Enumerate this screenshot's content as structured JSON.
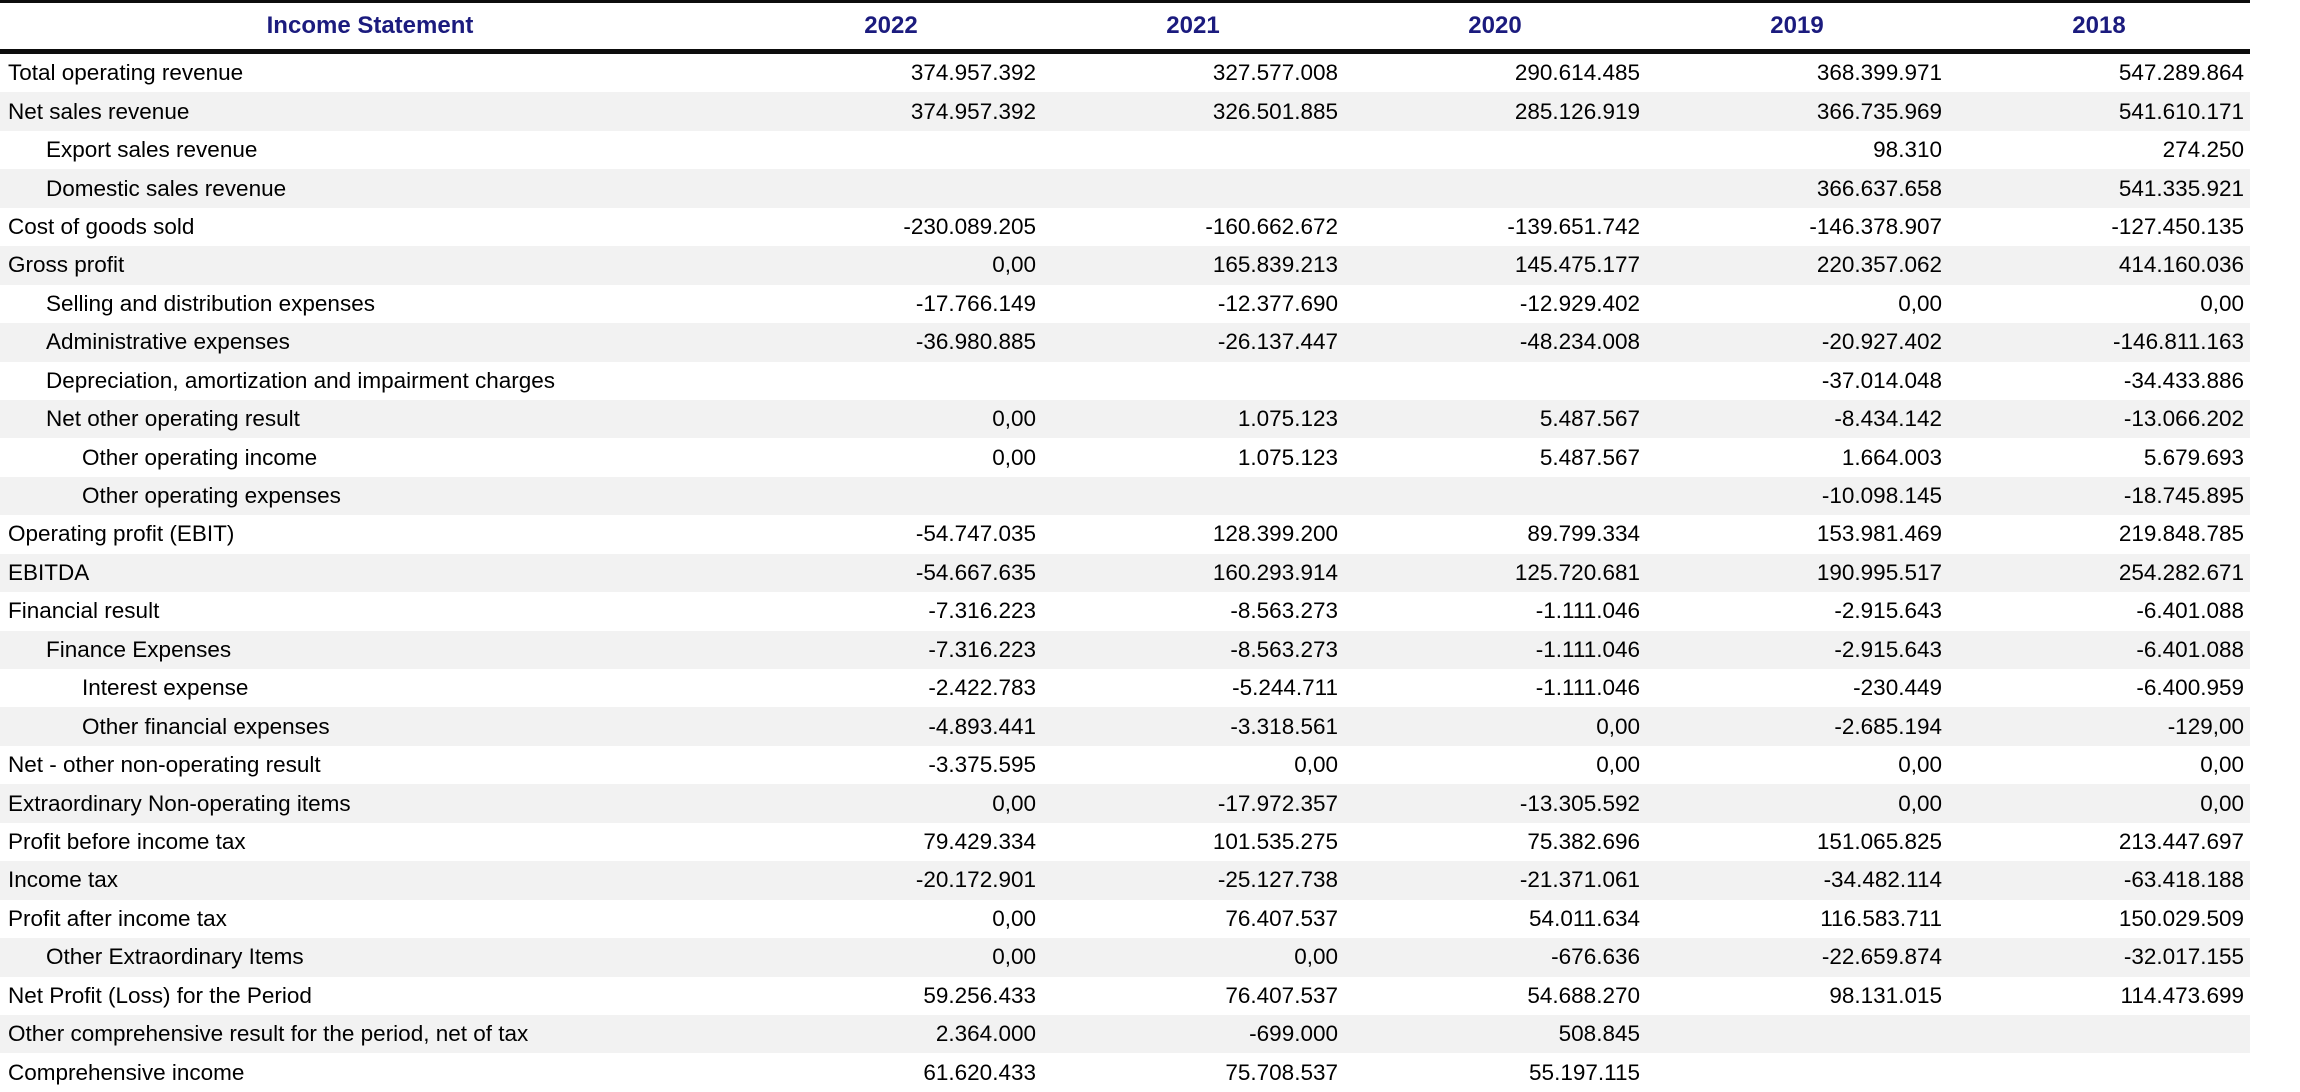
{
  "table": {
    "title": "Income Statement",
    "columns": [
      "2022",
      "2021",
      "2020",
      "2019",
      "2018"
    ],
    "colors": {
      "header_text": "#1b1b7e",
      "stripe": "#f2f2f2",
      "border": "#0d0d0d",
      "body_text": "#000000"
    },
    "rows": [
      {
        "label": "Total operating revenue",
        "indent": 0,
        "values": [
          "374.957.392",
          "327.577.008",
          "290.614.485",
          "368.399.971",
          "547.289.864"
        ]
      },
      {
        "label": "Net sales revenue",
        "indent": 0,
        "values": [
          "374.957.392",
          "326.501.885",
          "285.126.919",
          "366.735.969",
          "541.610.171"
        ]
      },
      {
        "label": "Export sales revenue",
        "indent": 1,
        "values": [
          "",
          "",
          "",
          "98.310",
          "274.250"
        ]
      },
      {
        "label": "Domestic sales revenue",
        "indent": 1,
        "values": [
          "",
          "",
          "",
          "366.637.658",
          "541.335.921"
        ]
      },
      {
        "label": "Cost of goods sold",
        "indent": 0,
        "values": [
          "-230.089.205",
          "-160.662.672",
          "-139.651.742",
          "-146.378.907",
          "-127.450.135"
        ]
      },
      {
        "label": "Gross profit",
        "indent": 0,
        "values": [
          "0,00",
          "165.839.213",
          "145.475.177",
          "220.357.062",
          "414.160.036"
        ]
      },
      {
        "label": "Selling and distribution expenses",
        "indent": 1,
        "values": [
          "-17.766.149",
          "-12.377.690",
          "-12.929.402",
          "0,00",
          "0,00"
        ]
      },
      {
        "label": "Administrative expenses",
        "indent": 1,
        "values": [
          "-36.980.885",
          "-26.137.447",
          "-48.234.008",
          "-20.927.402",
          "-146.811.163"
        ]
      },
      {
        "label": "Depreciation, amortization and impairment charges",
        "indent": 1,
        "values": [
          "",
          "",
          "",
          "-37.014.048",
          "-34.433.886"
        ]
      },
      {
        "label": "Net other operating result",
        "indent": 1,
        "values": [
          "0,00",
          "1.075.123",
          "5.487.567",
          "-8.434.142",
          "-13.066.202"
        ]
      },
      {
        "label": "Other operating income",
        "indent": 2,
        "values": [
          "0,00",
          "1.075.123",
          "5.487.567",
          "1.664.003",
          "5.679.693"
        ]
      },
      {
        "label": "Other operating expenses",
        "indent": 2,
        "values": [
          "",
          "",
          "",
          "-10.098.145",
          "-18.745.895"
        ]
      },
      {
        "label": "Operating profit (EBIT)",
        "indent": 0,
        "values": [
          "-54.747.035",
          "128.399.200",
          "89.799.334",
          "153.981.469",
          "219.848.785"
        ]
      },
      {
        "label": "EBITDA",
        "indent": 0,
        "values": [
          "-54.667.635",
          "160.293.914",
          "125.720.681",
          "190.995.517",
          "254.282.671"
        ]
      },
      {
        "label": "Financial result",
        "indent": 0,
        "values": [
          "-7.316.223",
          "-8.563.273",
          "-1.111.046",
          "-2.915.643",
          "-6.401.088"
        ]
      },
      {
        "label": "Finance Expenses",
        "indent": 1,
        "values": [
          "-7.316.223",
          "-8.563.273",
          "-1.111.046",
          "-2.915.643",
          "-6.401.088"
        ]
      },
      {
        "label": "Interest expense",
        "indent": 2,
        "values": [
          "-2.422.783",
          "-5.244.711",
          "-1.111.046",
          "-230.449",
          "-6.400.959"
        ]
      },
      {
        "label": "Other financial expenses",
        "indent": 2,
        "values": [
          "-4.893.441",
          "-3.318.561",
          "0,00",
          "-2.685.194",
          "-129,00"
        ]
      },
      {
        "label": "Net - other non-operating result",
        "indent": 0,
        "values": [
          "-3.375.595",
          "0,00",
          "0,00",
          "0,00",
          "0,00"
        ]
      },
      {
        "label": "Extraordinary Non-operating items",
        "indent": 0,
        "values": [
          "0,00",
          "-17.972.357",
          "-13.305.592",
          "0,00",
          "0,00"
        ]
      },
      {
        "label": "Profit before income tax",
        "indent": 0,
        "values": [
          "79.429.334",
          "101.535.275",
          "75.382.696",
          "151.065.825",
          "213.447.697"
        ]
      },
      {
        "label": "Income tax",
        "indent": 0,
        "values": [
          "-20.172.901",
          "-25.127.738",
          "-21.371.061",
          "-34.482.114",
          "-63.418.188"
        ]
      },
      {
        "label": "Profit after income tax",
        "indent": 0,
        "values": [
          "0,00",
          "76.407.537",
          "54.011.634",
          "116.583.711",
          "150.029.509"
        ]
      },
      {
        "label": "Other Extraordinary Items",
        "indent": 1,
        "values": [
          "0,00",
          "0,00",
          "-676.636",
          "-22.659.874",
          "-32.017.155"
        ]
      },
      {
        "label": "Net Profit (Loss) for the Period",
        "indent": 0,
        "values": [
          "59.256.433",
          "76.407.537",
          "54.688.270",
          "98.131.015",
          "114.473.699"
        ]
      },
      {
        "label": "Other comprehensive result for the period, net of tax",
        "indent": 0,
        "values": [
          "2.364.000",
          "-699.000",
          "508.845",
          "",
          ""
        ]
      },
      {
        "label": "Comprehensive income",
        "indent": 0,
        "values": [
          "61.620.433",
          "75.708.537",
          "55.197.115",
          "",
          ""
        ]
      }
    ]
  }
}
